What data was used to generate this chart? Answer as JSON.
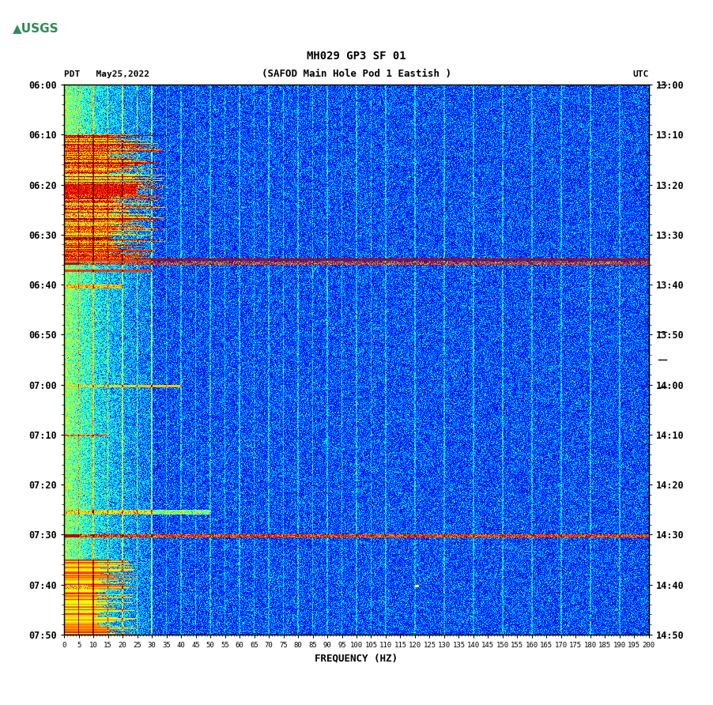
{
  "title_line1": "MH029 GP3 SF 01",
  "title_line2": "(SAFOD Main Hole Pod 1 Eastish )",
  "left_label": "PDT   May25,2022",
  "right_label": "UTC",
  "xlabel": "FREQUENCY (HZ)",
  "freq_min": 0,
  "freq_max": 200,
  "time_start_pdt": "06:00",
  "time_end_pdt": "07:50",
  "time_start_utc": "13:00",
  "time_end_utc": "14:50",
  "pdt_ticks": [
    "06:00",
    "06:10",
    "06:20",
    "06:30",
    "06:40",
    "06:50",
    "07:00",
    "07:10",
    "07:20",
    "07:30",
    "07:40",
    "07:50"
  ],
  "utc_ticks": [
    "13:00",
    "13:10",
    "13:20",
    "13:30",
    "13:40",
    "13:50",
    "14:00",
    "14:10",
    "14:20",
    "14:30",
    "14:40",
    "14:50"
  ],
  "freq_ticks": [
    0,
    5,
    10,
    15,
    20,
    25,
    30,
    35,
    40,
    45,
    50,
    55,
    60,
    65,
    70,
    75,
    80,
    85,
    90,
    95,
    100,
    105,
    110,
    115,
    120,
    125,
    130,
    135,
    140,
    145,
    150,
    155,
    160,
    165,
    170,
    175,
    180,
    185,
    190,
    195,
    200
  ],
  "bg_color": "#ffffff",
  "spectrogram_bg": "#0099ff",
  "sidebar_color": "#e0e0e0",
  "sidebar_tick_color": "#000000",
  "noise_floor_color": "#00aaff",
  "hot_color": "#ff0000",
  "colormap": "jet",
  "random_seed": 42,
  "n_time": 1100,
  "n_freq": 800,
  "usgs_logo_color": "#33aa33"
}
